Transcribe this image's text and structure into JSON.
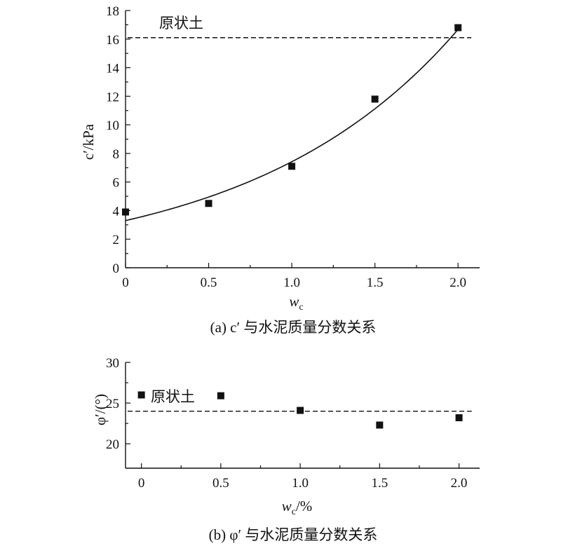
{
  "chart_data": [
    {
      "type": "scatter",
      "caption": "(a) c′ 与水泥质量分数关系",
      "xlabel": "w",
      "xlabel_sub": "c",
      "ylabel": "c′/kPa",
      "xlim": [
        0,
        2.13
      ],
      "ylim": [
        0,
        18
      ],
      "xticks": [
        0,
        0.5,
        1.0,
        1.5,
        2.0
      ],
      "xtick_labels": [
        "0",
        "0.5",
        "1.0",
        "1.5",
        "2.0"
      ],
      "yticks": [
        0,
        2,
        4,
        6,
        8,
        10,
        12,
        14,
        16,
        18
      ],
      "ytick_labels": [
        "0",
        "2",
        "4",
        "6",
        "8",
        "10",
        "12",
        "14",
        "16",
        "18"
      ],
      "points": [
        {
          "x": 0,
          "y": 3.9
        },
        {
          "x": 0.5,
          "y": 4.5
        },
        {
          "x": 1.0,
          "y": 7.1
        },
        {
          "x": 1.5,
          "y": 11.8
        },
        {
          "x": 2.0,
          "y": 16.8
        }
      ],
      "reference": {
        "y": 16.1,
        "label": "原状土"
      },
      "fit": {
        "model": "exponential",
        "a": 3.3,
        "b": 0.81
      }
    },
    {
      "type": "scatter",
      "caption": "(b) φ′ 与水泥质量分数关系",
      "xlabel": "w",
      "xlabel_sub": "c",
      "xlabel_suffix": "/%",
      "ylabel": "φ′/(°)",
      "xlim": [
        -0.1,
        2.13
      ],
      "ylim": [
        17,
        30
      ],
      "xticks": [
        0,
        0.5,
        1.0,
        1.5,
        2.0
      ],
      "xtick_labels": [
        "0",
        "0.5",
        "1.0",
        "1.5",
        "2.0"
      ],
      "yticks": [
        20,
        25,
        30
      ],
      "ytick_labels": [
        "20",
        "25",
        "30"
      ],
      "points": [
        {
          "x": 0,
          "y": 26.0
        },
        {
          "x": 0.5,
          "y": 25.9
        },
        {
          "x": 1.0,
          "y": 24.1
        },
        {
          "x": 1.5,
          "y": 22.3
        },
        {
          "x": 2.0,
          "y": 23.2
        }
      ],
      "reference": {
        "y": 24.0,
        "label": "原状土"
      }
    }
  ]
}
